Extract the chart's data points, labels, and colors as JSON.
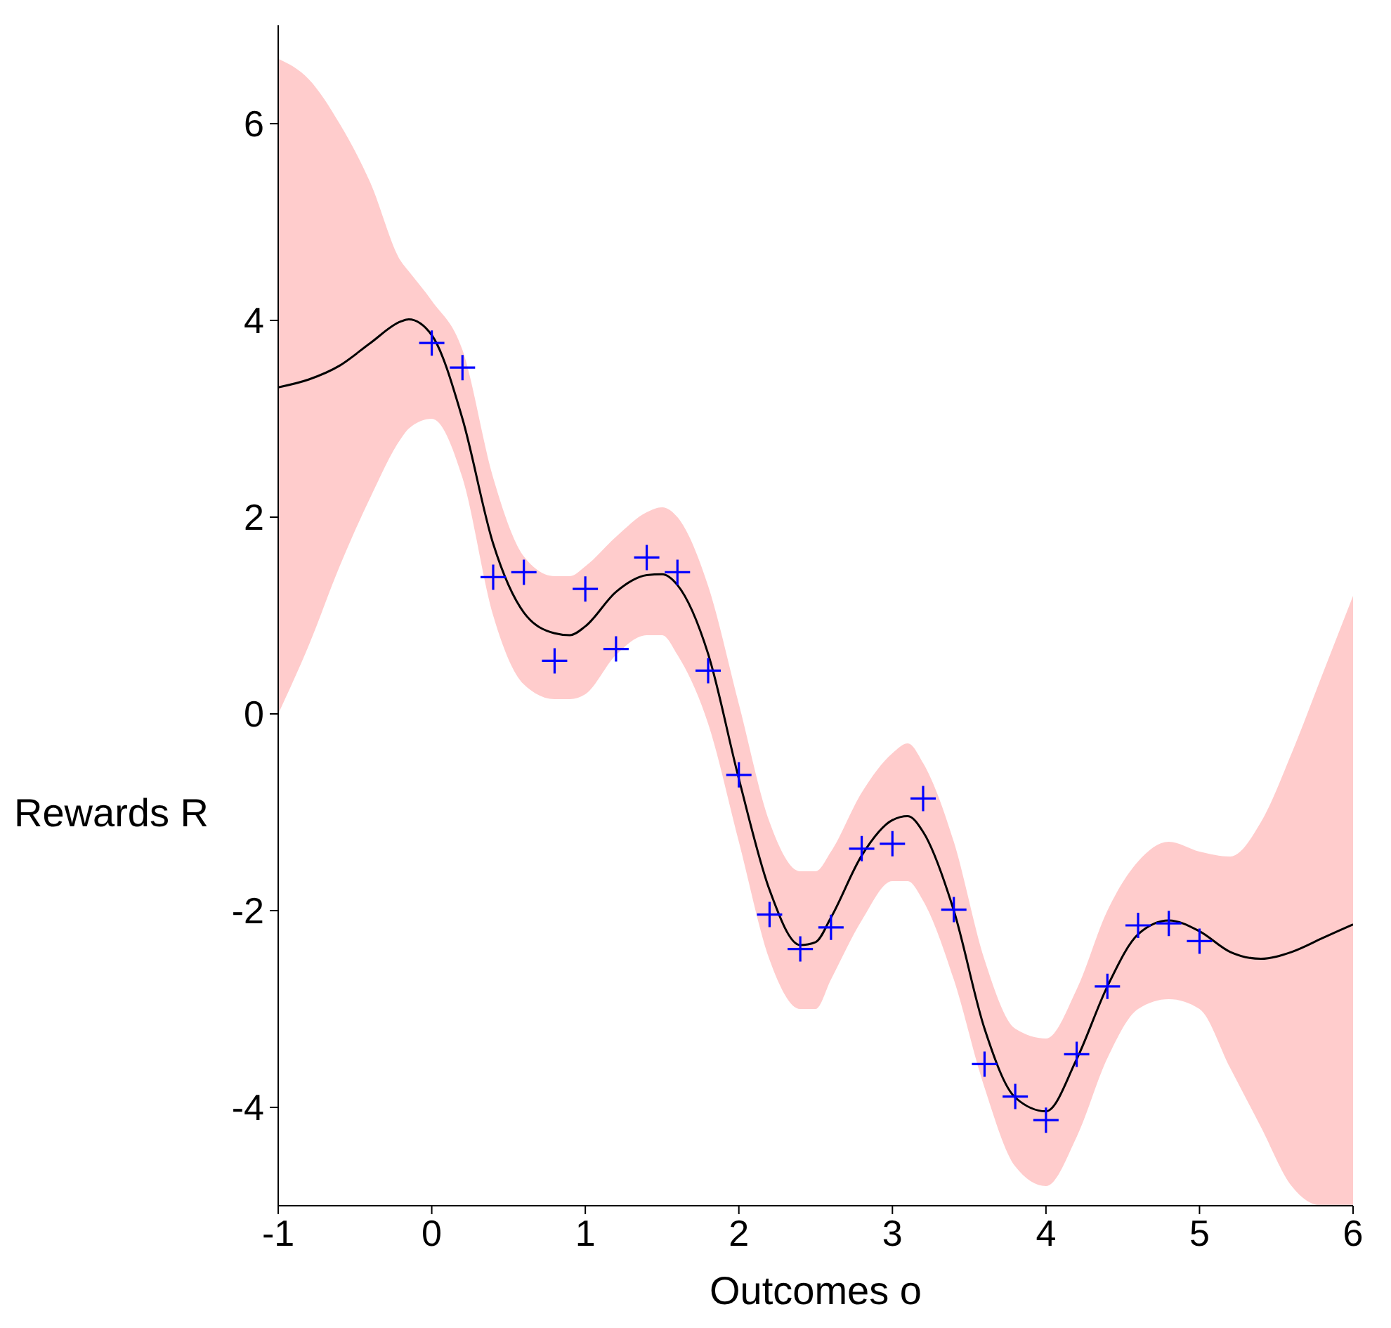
{
  "chart_data": {
    "type": "line",
    "xlabel": "Outcomes o",
    "ylabel": "Rewards R",
    "xlim": [
      -1,
      6
    ],
    "xticks": [
      -1,
      0,
      1,
      2,
      3,
      4,
      5,
      6
    ],
    "ylim": [
      -5,
      7
    ],
    "yticks": [
      -4,
      -2,
      0,
      2,
      4,
      6
    ],
    "grid": false,
    "legend": false,
    "series": [
      {
        "color": "#000000",
        "line_style": "solid",
        "marker": "none",
        "x": [
          -1,
          -0.8,
          -0.6,
          -0.4,
          -0.2,
          -0.15,
          0,
          0.2,
          0.4,
          0.6,
          0.8,
          0.9,
          1,
          1.2,
          1.4,
          1.5,
          1.6,
          1.8,
          2,
          2.2,
          2.4,
          2.5,
          2.6,
          2.8,
          3,
          3.1,
          3.2,
          3.4,
          3.6,
          3.8,
          4,
          4.2,
          4.4,
          4.6,
          4.8,
          5,
          5.2,
          5.4,
          5.6,
          5.8,
          6
        ],
        "values": [
          3.32,
          3.4,
          3.54,
          3.77,
          3.99,
          4.01,
          3.85,
          3.0,
          1.73,
          1.03,
          0.82,
          0.8,
          0.89,
          1.24,
          1.41,
          1.42,
          1.31,
          0.61,
          -0.66,
          -1.79,
          -2.35,
          -2.32,
          -2.07,
          -1.44,
          -1.08,
          -1.04,
          -1.2,
          -2.0,
          -3.2,
          -3.9,
          -4.04,
          -3.51,
          -2.77,
          -2.24,
          -2.1,
          -2.21,
          -2.42,
          -2.49,
          -2.42,
          -2.28,
          -2.14
        ],
        "lower": [
          0.0,
          0.7,
          1.5,
          2.2,
          2.8,
          2.9,
          3.0,
          2.4,
          1.0,
          0.3,
          0.15,
          0.15,
          0.2,
          0.6,
          0.8,
          0.8,
          0.6,
          -0.1,
          -1.3,
          -2.5,
          -3.0,
          -3.0,
          -2.7,
          -2.1,
          -1.7,
          -1.7,
          -1.9,
          -2.7,
          -3.8,
          -4.6,
          -4.8,
          -4.3,
          -3.5,
          -3.0,
          -2.9,
          -3.0,
          -3.6,
          -4.2,
          -4.8,
          -5.0,
          -5.0
        ],
        "upper": [
          6.66,
          6.45,
          6.0,
          5.4,
          4.6,
          4.5,
          4.2,
          3.7,
          2.4,
          1.6,
          1.4,
          1.4,
          1.5,
          1.8,
          2.05,
          2.1,
          2.0,
          1.3,
          0.1,
          -1.1,
          -1.6,
          -1.6,
          -1.4,
          -0.8,
          -0.4,
          -0.3,
          -0.5,
          -1.3,
          -2.5,
          -3.2,
          -3.3,
          -2.8,
          -2.0,
          -1.5,
          -1.3,
          -1.4,
          -1.45,
          -1.1,
          -0.4,
          0.4,
          1.2
        ]
      },
      {
        "type": "scatter",
        "color": "#0000ff",
        "marker": "cross",
        "x": [
          0,
          0.2,
          0.4,
          0.6,
          0.8,
          1,
          1.2,
          1.4,
          1.6,
          1.8,
          2,
          2.2,
          2.4,
          2.6,
          2.8,
          3,
          3.2,
          3.4,
          3.6,
          3.8,
          4,
          4.2,
          4.4,
          4.6,
          4.8,
          5
        ],
        "values": [
          3.77,
          3.52,
          1.39,
          1.44,
          0.54,
          1.27,
          0.66,
          1.59,
          1.44,
          0.44,
          -0.62,
          -2.04,
          -2.39,
          -2.17,
          -1.37,
          -1.32,
          -0.86,
          -1.99,
          -3.56,
          -3.89,
          -4.13,
          -3.46,
          -2.77,
          -2.15,
          -2.13,
          -2.31
        ]
      }
    ]
  }
}
